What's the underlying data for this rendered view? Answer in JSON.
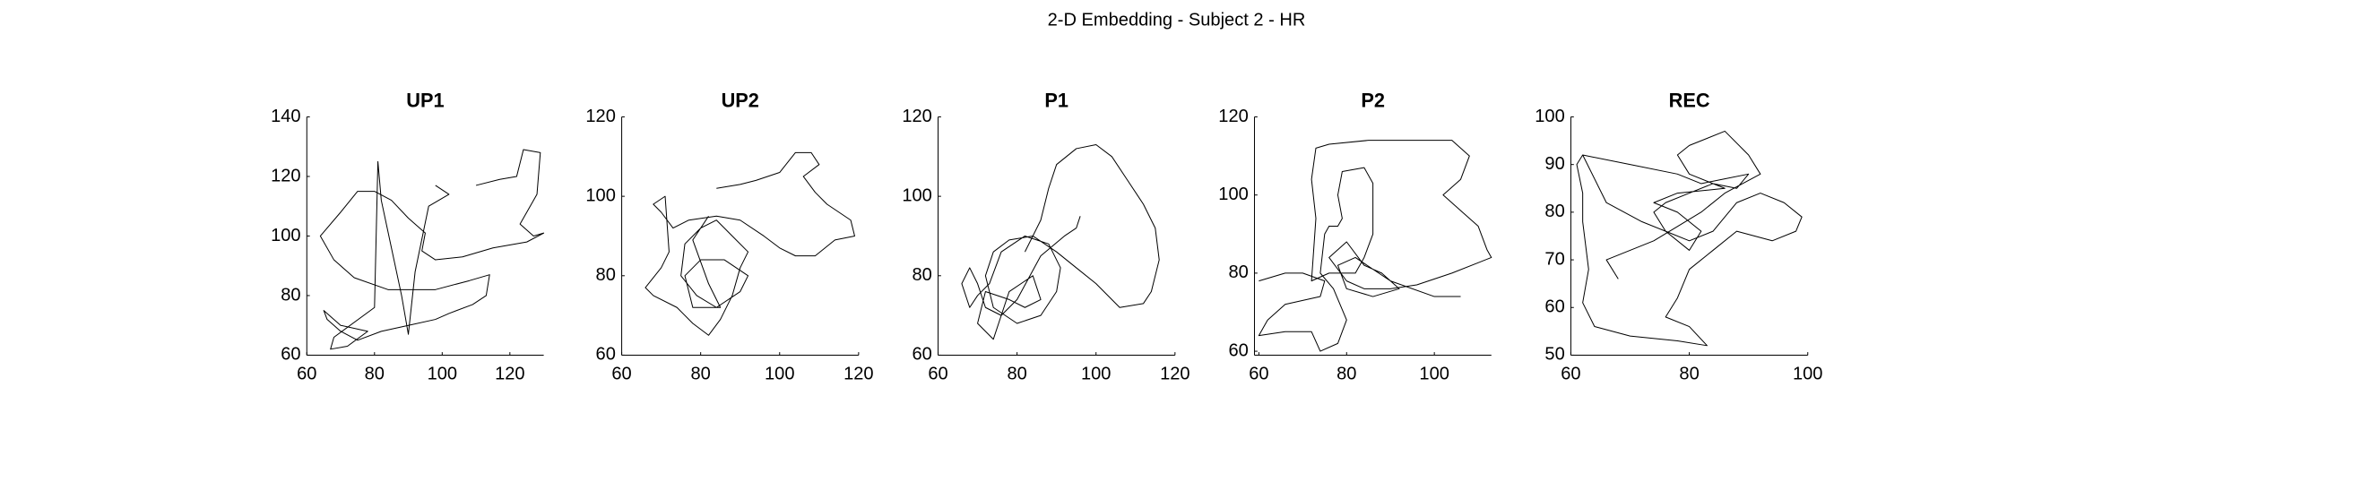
{
  "title": "2-D Embedding - Subject 2 - HR",
  "chart_data": [
    {
      "type": "line",
      "title": "UP1",
      "xlim": [
        60,
        130
      ],
      "ylim": [
        60,
        140
      ],
      "xticks": [
        60,
        80,
        100,
        120
      ],
      "yticks": [
        60,
        80,
        100,
        120,
        140
      ],
      "series": [
        {
          "color": "#000000",
          "x": [
            110,
            117,
            122,
            124,
            129,
            128,
            125,
            123,
            127,
            130,
            125,
            115,
            106,
            98,
            94,
            95,
            90,
            85,
            80,
            75,
            70,
            64,
            68,
            74,
            84,
            98,
            108,
            114,
            113,
            109,
            102,
            98,
            90,
            82,
            75,
            70,
            66,
            65,
            70,
            78,
            72,
            67,
            68,
            80,
            81,
            82,
            85,
            88,
            90,
            92,
            96,
            102,
            98
          ],
          "values": [
            117,
            119,
            120,
            129,
            128,
            114,
            108,
            104,
            100,
            101,
            98,
            96,
            93,
            92,
            95,
            101,
            106,
            112,
            115,
            115,
            108,
            100,
            92,
            86,
            82,
            82,
            85,
            87,
            80,
            77,
            74,
            72,
            70,
            68,
            65,
            68,
            72,
            75,
            70,
            68,
            63,
            62,
            66,
            76,
            125,
            112,
            96,
            80,
            67,
            88,
            110,
            114,
            117
          ]
        }
      ]
    },
    {
      "type": "line",
      "title": "UP2",
      "xlim": [
        60,
        120
      ],
      "ylim": [
        60,
        120
      ],
      "xticks": [
        60,
        80,
        100,
        120
      ],
      "yticks": [
        60,
        80,
        100,
        120
      ],
      "series": [
        {
          "color": "#000000",
          "x": [
            84,
            90,
            94,
            100,
            104,
            108,
            110,
            106,
            109,
            112,
            118,
            119,
            114,
            109,
            104,
            100,
            96,
            90,
            84,
            77,
            73,
            70,
            68,
            71,
            72,
            70,
            66,
            68,
            74,
            78,
            82,
            85,
            88,
            90,
            92,
            88,
            84,
            80,
            76,
            75,
            79,
            84,
            90,
            92,
            86,
            80,
            76,
            78,
            85,
            82,
            78,
            82
          ],
          "values": [
            102,
            103,
            104,
            106,
            111,
            111,
            108,
            105,
            101,
            98,
            94,
            90,
            89,
            85,
            85,
            87,
            90,
            94,
            95,
            94,
            92,
            96,
            98,
            100,
            86,
            82,
            77,
            75,
            72,
            68,
            65,
            69,
            75,
            82,
            86,
            90,
            94,
            92,
            88,
            80,
            75,
            72,
            76,
            80,
            84,
            84,
            80,
            72,
            72,
            78,
            89,
            95
          ]
        }
      ]
    },
    {
      "type": "line",
      "title": "P1",
      "xlim": [
        60,
        120
      ],
      "ylim": [
        60,
        120
      ],
      "xticks": [
        60,
        80,
        100,
        120
      ],
      "yticks": [
        60,
        80,
        100,
        120
      ],
      "series": [
        {
          "color": "#000000",
          "x": [
            82,
            86,
            88,
            90,
            95,
            100,
            104,
            108,
            112,
            115,
            116,
            114,
            112,
            106,
            100,
            95,
            90,
            84,
            78,
            74,
            72,
            74,
            80,
            86,
            90,
            91,
            88,
            82,
            76,
            73,
            70,
            68,
            66,
            68,
            70,
            72,
            76,
            78,
            84,
            86,
            82,
            78,
            72,
            70,
            74,
            76,
            80,
            86,
            92,
            95,
            96
          ],
          "values": [
            86,
            94,
            102,
            108,
            112,
            113,
            110,
            104,
            98,
            92,
            84,
            76,
            73,
            72,
            78,
            82,
            86,
            90,
            89,
            86,
            80,
            72,
            68,
            70,
            76,
            82,
            88,
            90,
            86,
            78,
            75,
            72,
            78,
            82,
            78,
            72,
            70,
            76,
            80,
            74,
            72,
            74,
            76,
            68,
            64,
            70,
            74,
            85,
            90,
            92,
            95
          ]
        }
      ]
    },
    {
      "type": "line",
      "title": "P2",
      "xlim": [
        59,
        113
      ],
      "ylim": [
        59,
        120
      ],
      "xticks": [
        60,
        80,
        100
      ],
      "yticks": [
        60,
        80,
        100,
        120
      ],
      "series": [
        {
          "color": "#000000",
          "x": [
            60,
            63,
            66,
            70,
            75,
            74,
            70,
            66,
            62,
            61,
            60,
            66,
            72,
            74,
            78,
            80,
            77,
            74,
            75,
            76,
            78,
            79,
            78,
            79,
            84,
            86,
            86,
            84,
            82,
            76,
            72,
            73,
            72,
            73,
            76,
            85,
            96,
            104,
            108,
            106,
            102,
            106,
            110,
            112,
            113,
            104,
            96,
            90,
            84,
            80,
            76,
            80,
            84,
            88,
            92,
            86,
            80,
            78,
            82,
            90,
            100,
            106
          ],
          "values": [
            78,
            79,
            80,
            80,
            78,
            74,
            73,
            72,
            68,
            66,
            64,
            65,
            65,
            60,
            62,
            68,
            76,
            80,
            90,
            92,
            92,
            94,
            100,
            106,
            107,
            103,
            90,
            84,
            80,
            80,
            78,
            94,
            104,
            112,
            113,
            114,
            114,
            114,
            110,
            104,
            100,
            96,
            92,
            86,
            84,
            80,
            77,
            76,
            76,
            78,
            84,
            88,
            82,
            80,
            76,
            74,
            76,
            82,
            84,
            78,
            74,
            74
          ]
        }
      ]
    },
    {
      "type": "line",
      "title": "REC",
      "xlim": [
        60,
        100
      ],
      "ylim": [
        50,
        100
      ],
      "xticks": [
        60,
        80,
        100
      ],
      "yticks": [
        50,
        60,
        70,
        80,
        90,
        100
      ],
      "series": [
        {
          "color": "#000000",
          "x": [
            62,
            70,
            78,
            82,
            86,
            90,
            88,
            84,
            80,
            76,
            74,
            76,
            80,
            84,
            88,
            92,
            96,
            99,
            98,
            94,
            88,
            84,
            80,
            78,
            76,
            80,
            83,
            78,
            70,
            64,
            62,
            63,
            62,
            62,
            61,
            62,
            66,
            72,
            76,
            80,
            82,
            78,
            74,
            78,
            86,
            80,
            78,
            80,
            86,
            90,
            92,
            86,
            82,
            74,
            70,
            66,
            68
          ],
          "values": [
            92,
            90,
            88,
            86,
            87,
            88,
            85,
            86,
            84,
            82,
            80,
            76,
            74,
            76,
            82,
            84,
            82,
            79,
            76,
            74,
            76,
            72,
            68,
            62,
            58,
            56,
            52,
            53,
            54,
            56,
            61,
            68,
            78,
            84,
            90,
            92,
            82,
            78,
            76,
            72,
            76,
            80,
            82,
            84,
            85,
            88,
            92,
            94,
            97,
            92,
            88,
            84,
            80,
            74,
            72,
            70,
            66
          ]
        }
      ]
    }
  ]
}
